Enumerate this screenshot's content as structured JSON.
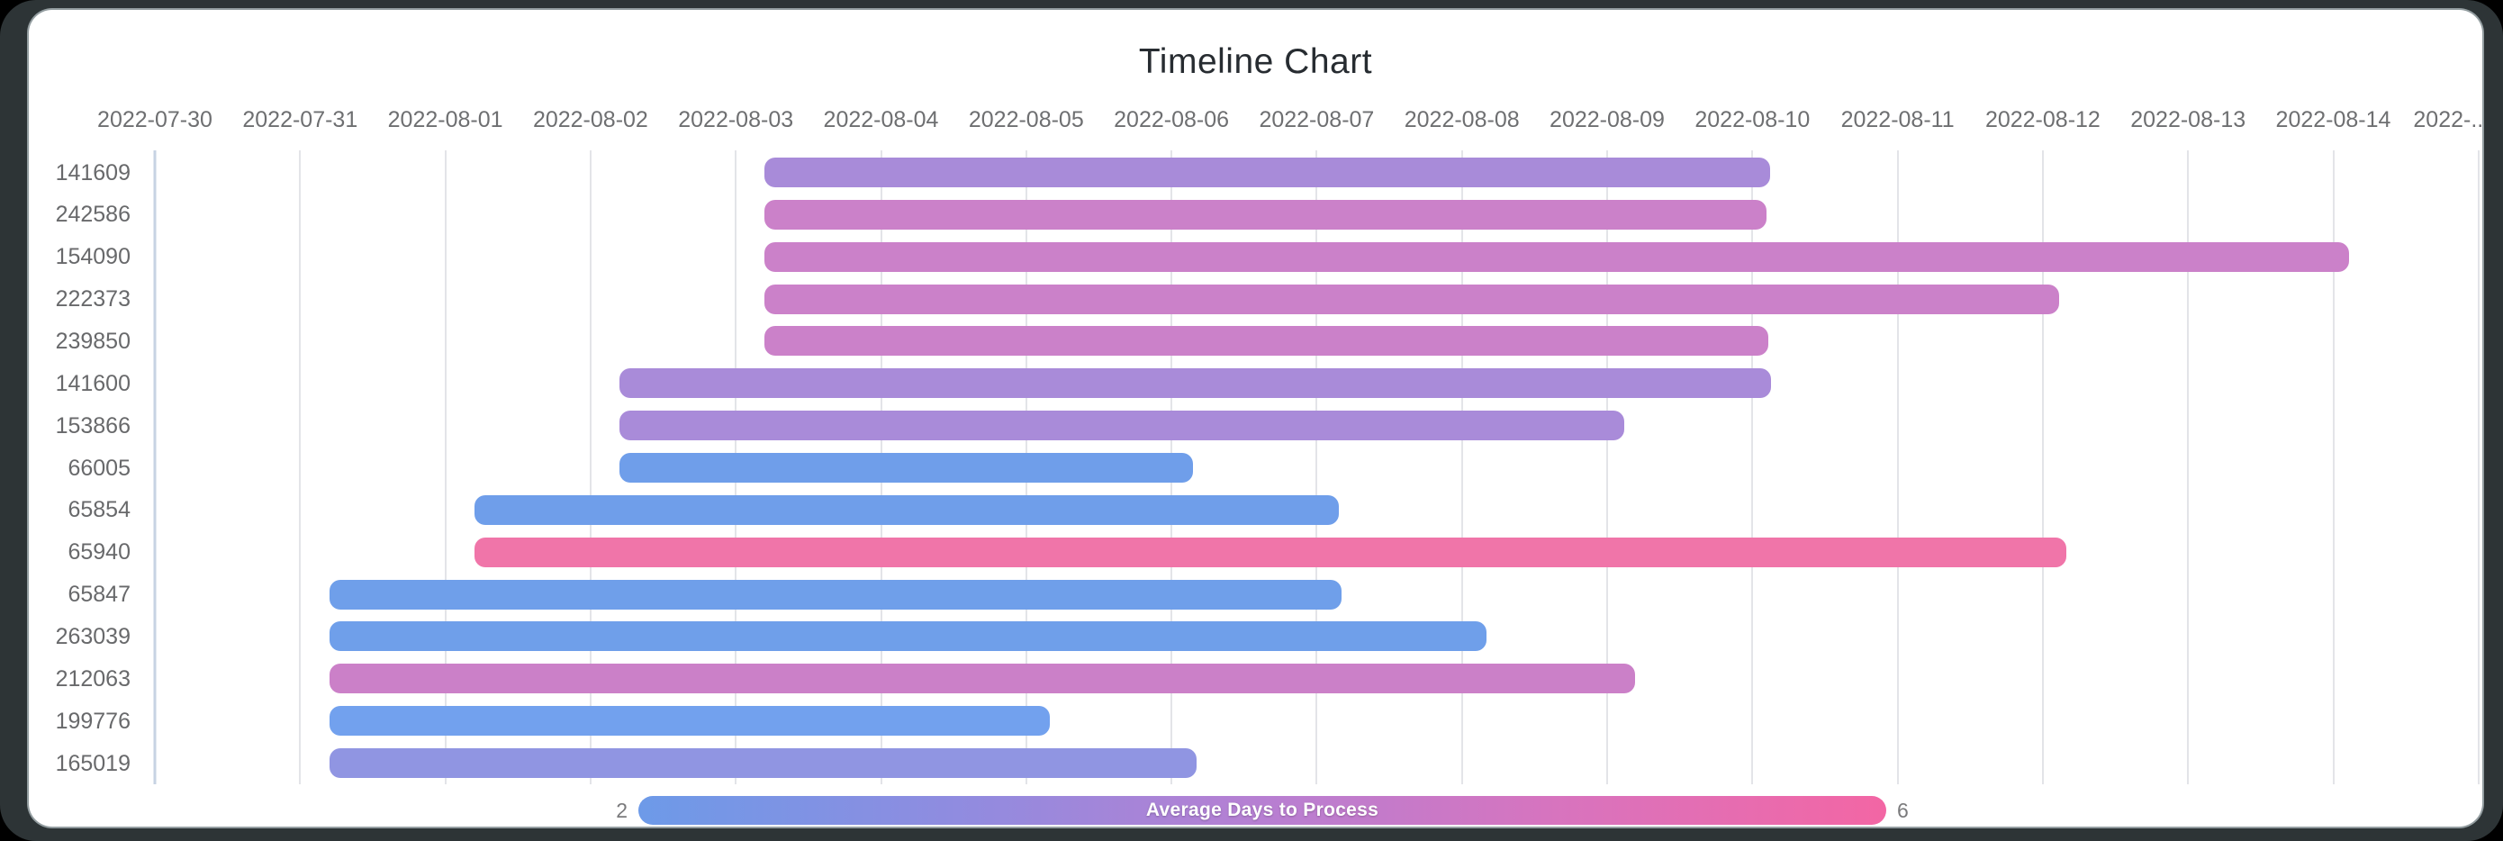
{
  "chart_data": {
    "type": "bar",
    "orientation": "horizontal-timeline",
    "title": "Timeline Chart",
    "x_labels": [
      "2022-07-30",
      "2022-07-31",
      "2022-08-01",
      "2022-08-02",
      "2022-08-03",
      "2022-08-04",
      "2022-08-05",
      "2022-08-06",
      "2022-08-07",
      "2022-08-08",
      "2022-08-09",
      "2022-08-10",
      "2022-08-11",
      "2022-08-12",
      "2022-08-13",
      "2022-08-14",
      "2022-..."
    ],
    "day_origin": "2022-07-30",
    "interval_days": 1,
    "grid": {
      "line_color": "#e3e4e8",
      "first_line_color": "#c7d3e3",
      "grid_on": true
    },
    "rows": [
      {
        "id": "141609",
        "start_day": 4.2,
        "end_day": 11.12,
        "color": "#a88bd9"
      },
      {
        "id": "242586",
        "start_day": 4.2,
        "end_day": 11.1,
        "color": "#cb81c9"
      },
      {
        "id": "154090",
        "start_day": 4.2,
        "end_day": 15.11,
        "color": "#cb81c9"
      },
      {
        "id": "222373",
        "start_day": 4.2,
        "end_day": 13.11,
        "color": "#cb81c9"
      },
      {
        "id": "239850",
        "start_day": 4.2,
        "end_day": 11.11,
        "color": "#cb81c9"
      },
      {
        "id": "141600",
        "start_day": 3.2,
        "end_day": 11.13,
        "color": "#a98bd9"
      },
      {
        "id": "153866",
        "start_day": 3.2,
        "end_day": 10.12,
        "color": "#a98bd9"
      },
      {
        "id": "66005",
        "start_day": 3.2,
        "end_day": 7.15,
        "color": "#6f9eea"
      },
      {
        "id": "65854",
        "start_day": 2.2,
        "end_day": 8.15,
        "color": "#6f9eea"
      },
      {
        "id": "65940",
        "start_day": 2.2,
        "end_day": 13.16,
        "color": "#f075a9"
      },
      {
        "id": "65847",
        "start_day": 1.2,
        "end_day": 8.17,
        "color": "#6f9fea"
      },
      {
        "id": "263039",
        "start_day": 1.2,
        "end_day": 9.17,
        "color": "#6f9fea"
      },
      {
        "id": "212063",
        "start_day": 1.2,
        "end_day": 10.19,
        "color": "#cb80c8"
      },
      {
        "id": "199776",
        "start_day": 1.2,
        "end_day": 6.16,
        "color": "#72a1ee"
      },
      {
        "id": "165019",
        "start_day": 1.2,
        "end_day": 7.17,
        "color": "#9095e2"
      }
    ],
    "legend": {
      "label": "Average Days to Process",
      "min": "2",
      "max": "6",
      "gradient": [
        "#6d9ae8",
        "#8f8ce0",
        "#b77fd2",
        "#d973bd",
        "#f366a4"
      ],
      "text_color": "#ffffff",
      "minmax_color": "#7a7a7c"
    }
  }
}
